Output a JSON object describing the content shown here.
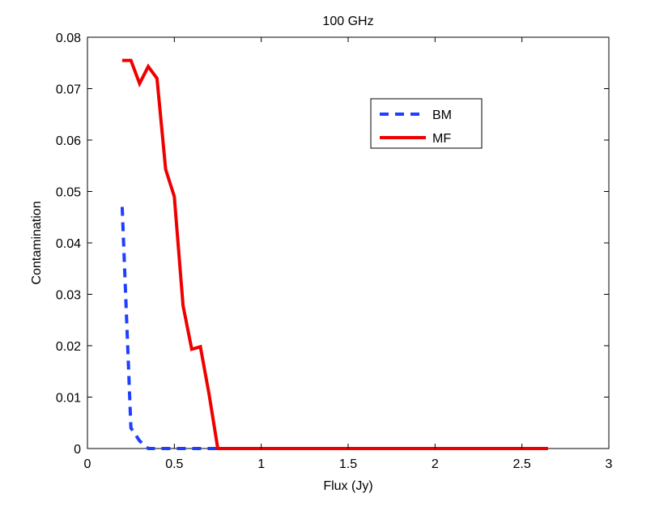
{
  "chart_data": {
    "type": "line",
    "title": "100 GHz",
    "xlabel": "Flux (Jy)",
    "ylabel": "Contamination",
    "xlim": [
      0,
      3
    ],
    "ylim": [
      0,
      0.08
    ],
    "grid": false,
    "legend_position": "top-right",
    "x_ticks": [
      0,
      0.5,
      1,
      1.5,
      2,
      2.5,
      3
    ],
    "x_tick_labels": [
      "0",
      "0.5",
      "1",
      "1.5",
      "2",
      "2.5",
      "3"
    ],
    "y_ticks": [
      0,
      0.01,
      0.02,
      0.03,
      0.04,
      0.05,
      0.06,
      0.07,
      0.08
    ],
    "y_tick_labels": [
      "0",
      "0.01",
      "0.02",
      "0.03",
      "0.04",
      "0.05",
      "0.06",
      "0.07",
      "0.08"
    ],
    "series": [
      {
        "name": "BM",
        "color": "#1f3fff",
        "style": "dashed",
        "x": [
          0.2,
          0.25,
          0.3,
          0.35,
          0.4,
          0.45,
          0.5,
          0.55,
          0.6,
          0.65,
          0.7,
          0.75
        ],
        "y": [
          0.047,
          0.004,
          0.0015,
          0,
          0,
          0,
          0,
          0,
          0,
          0,
          0,
          0
        ]
      },
      {
        "name": "MF",
        "color": "#ee0000",
        "style": "solid",
        "x": [
          0.2,
          0.25,
          0.3,
          0.35,
          0.4,
          0.45,
          0.5,
          0.55,
          0.6,
          0.65,
          0.7,
          0.75,
          0.8,
          0.9,
          1.0,
          1.2,
          1.4,
          1.6,
          1.8,
          2.0,
          2.2,
          2.4,
          2.65
        ],
        "y": [
          0.0755,
          0.0755,
          0.071,
          0.0743,
          0.072,
          0.0543,
          0.049,
          0.0278,
          0.0193,
          0.0198,
          0.0105,
          0,
          0,
          0,
          0,
          0,
          0,
          0,
          0,
          0,
          0,
          0,
          0
        ]
      }
    ]
  }
}
